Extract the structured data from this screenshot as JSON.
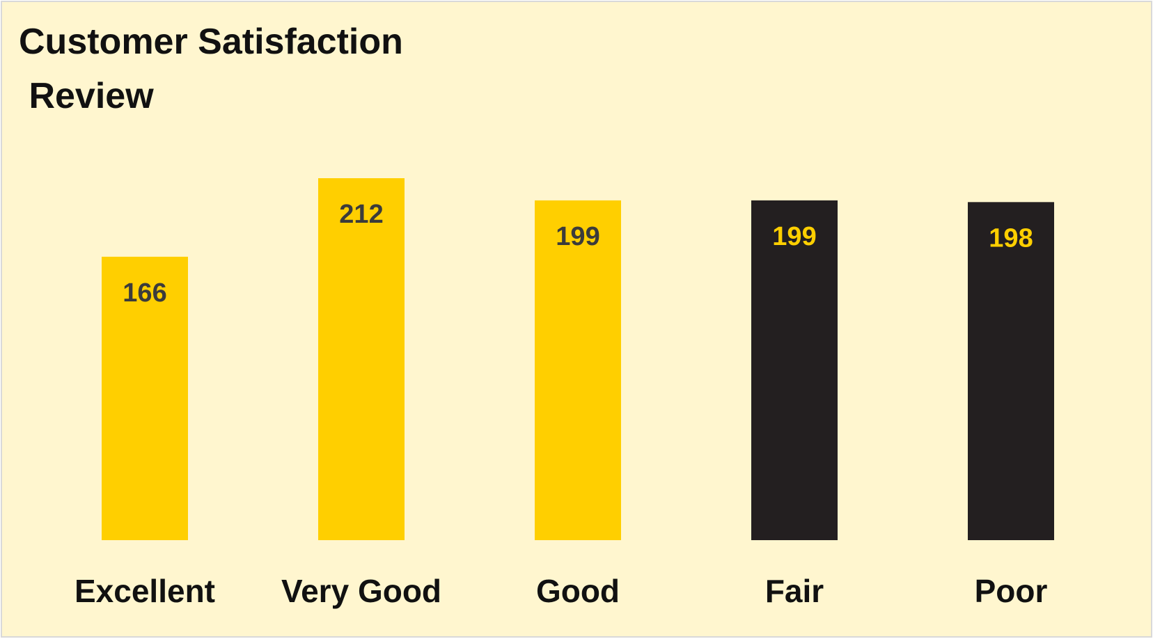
{
  "chart_data": {
    "type": "bar",
    "title": "Customer Satisfaction\n Review",
    "categories": [
      "Excellent",
      "Very Good",
      "Good",
      "Fair",
      "Poor"
    ],
    "values": [
      166,
      212,
      199,
      199,
      198
    ],
    "ylim": [
      0,
      212
    ],
    "grid": false,
    "legend": "none",
    "colors": {
      "background": "#FFF6CF",
      "bar_primary": "#FFCF00",
      "bar_secondary": "#231F20",
      "label_on_primary": "#3B3B3B",
      "label_on_secondary": "#FFCF00"
    },
    "bar_color_by_category": [
      "primary",
      "primary",
      "primary",
      "secondary",
      "secondary"
    ]
  }
}
